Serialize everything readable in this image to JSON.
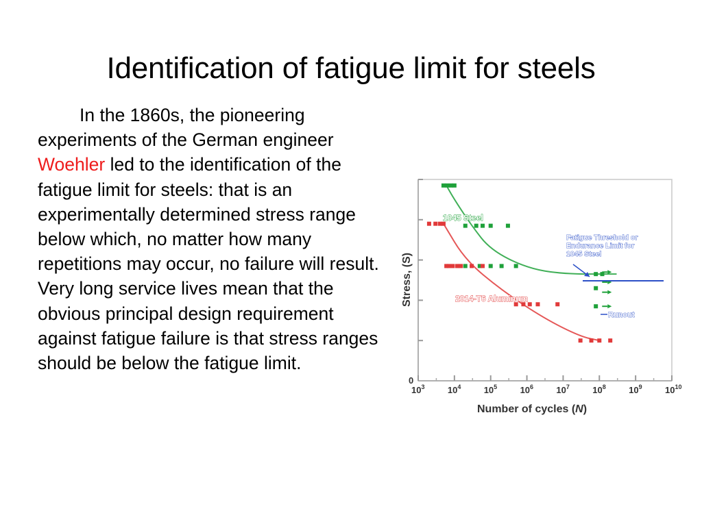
{
  "slide": {
    "title": "Identification of fatigue limit for steels",
    "body": {
      "before": "In the 1860s, the pioneering experiments of the German engineer ",
      "highlight": "Woehler",
      "after": " led to the identification of the fatigue limit for steels: that is an experimentally determined stress range below which, no matter how many repetitions may occur, no failure will result. Very long service lives mean that the obvious principal design requirement against fatigue failure is that stress ranges should be below the fatigue limit."
    },
    "highlight_color": "#ee1c1c"
  },
  "chart_data": {
    "type": "scatter",
    "xlabel_prefix": "Number of cycles (",
    "xlabel_var": "N",
    "xlabel_suffix": ")",
    "ylabel": "Stress, (S)",
    "x_scale": "log",
    "xlim": [
      1000,
      10000000000
    ],
    "x_ticks": [
      {
        "base": "10",
        "exp": "3",
        "v": 1000
      },
      {
        "base": "10",
        "exp": "4",
        "v": 10000
      },
      {
        "base": "10",
        "exp": "5",
        "v": 100000
      },
      {
        "base": "10",
        "exp": "6",
        "v": 1000000
      },
      {
        "base": "10",
        "exp": "7",
        "v": 10000000
      },
      {
        "base": "10",
        "exp": "8",
        "v": 100000000
      },
      {
        "base": "10",
        "exp": "9",
        "v": 1000000000
      },
      {
        "base": "10",
        "exp": "10",
        "v": 10000000000
      }
    ],
    "y_origin_label": "0",
    "ylim": [
      0,
      5
    ],
    "y_ticks": [
      0,
      1,
      2,
      3,
      4,
      5
    ],
    "grid": false,
    "series": [
      {
        "name": "1045 Steel",
        "color": "#1fa13a",
        "points": [
          [
            5000,
            4.85
          ],
          [
            6300,
            4.85
          ],
          [
            8000,
            4.85
          ],
          [
            10000,
            4.85
          ],
          [
            20000,
            3.85
          ],
          [
            40000,
            3.85
          ],
          [
            60000,
            3.85
          ],
          [
            100000,
            3.85
          ],
          [
            300000,
            3.85
          ],
          [
            20000,
            2.85
          ],
          [
            50000,
            2.85
          ],
          [
            100000,
            2.85
          ],
          [
            200000,
            2.85
          ],
          [
            500000,
            2.85
          ],
          [
            80000000,
            2.65
          ],
          [
            120000000,
            2.65
          ],
          [
            80000000,
            2.3
          ],
          [
            80000000,
            1.85
          ]
        ],
        "curve": [
          [
            6000,
            4.85
          ],
          [
            10000,
            4.5
          ],
          [
            30000,
            3.85
          ],
          [
            100000,
            3.25
          ],
          [
            1000000,
            2.8
          ],
          [
            10000000,
            2.65
          ],
          [
            300000000,
            2.65
          ]
        ]
      },
      {
        "name": "2014-T6 Aluminum",
        "color": "#e13a3a",
        "points": [
          [
            2000,
            3.9
          ],
          [
            3000,
            3.9
          ],
          [
            4000,
            3.9
          ],
          [
            5000,
            3.9
          ],
          [
            6000,
            2.85
          ],
          [
            7000,
            2.85
          ],
          [
            9000,
            2.85
          ],
          [
            12000,
            2.85
          ],
          [
            15000,
            2.85
          ],
          [
            30000,
            2.85
          ],
          [
            60000,
            2.85
          ],
          [
            500000,
            1.9
          ],
          [
            800000,
            1.9
          ],
          [
            1200000,
            1.9
          ],
          [
            2000000,
            1.9
          ],
          [
            7000000,
            1.9
          ],
          [
            30000000,
            1.0
          ],
          [
            60000000,
            1.0
          ],
          [
            100000000,
            1.0
          ],
          [
            200000000,
            1.0
          ]
        ],
        "curve": [
          [
            5000,
            3.9
          ],
          [
            20000,
            3.0
          ],
          [
            200000,
            2.25
          ],
          [
            3000000,
            1.55
          ],
          [
            30000000,
            1.1
          ],
          [
            100000000,
            1.0
          ]
        ]
      }
    ],
    "annotations": [
      {
        "text_lines": [
          "Fatigue Threshold or",
          "Endurance Limit for",
          "1045 Steel"
        ],
        "color": "#2b4fc7"
      },
      {
        "text": "Runout",
        "color": "#2b4fc7"
      }
    ],
    "runout_points": [
      [
        100000000,
        2.7
      ],
      [
        100000000,
        2.45
      ],
      [
        100000000,
        2.2
      ],
      [
        100000000,
        1.85
      ]
    ]
  }
}
